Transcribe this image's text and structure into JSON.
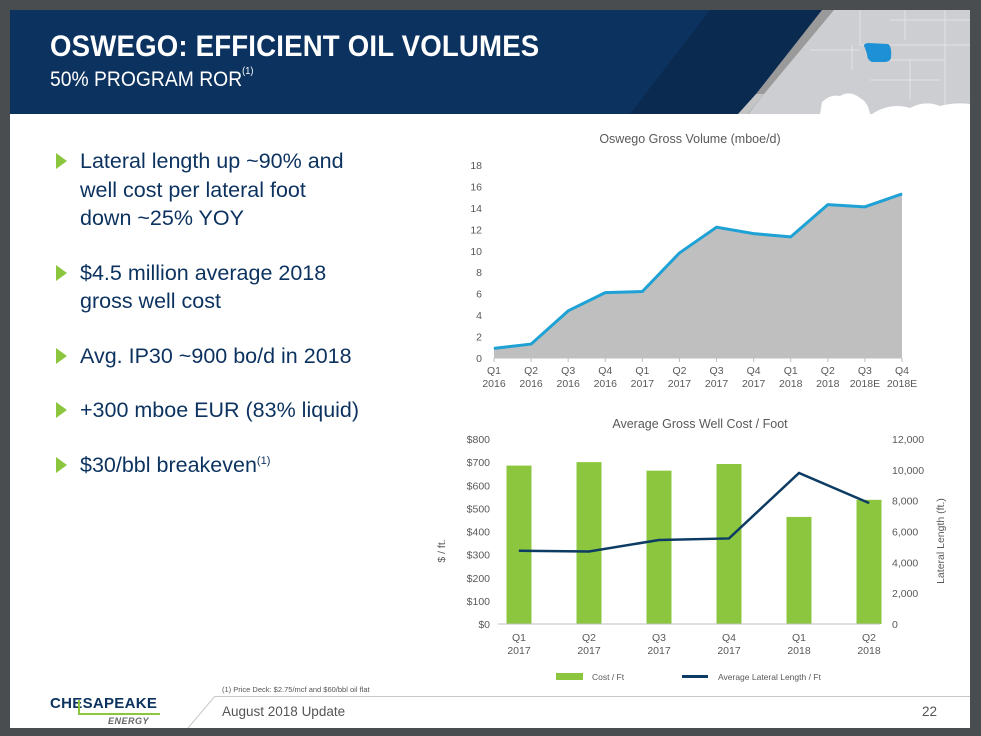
{
  "header": {
    "title": "OSWEGO: EFFICIENT OIL VOLUMES",
    "subtitle": "50% PROGRAM ROR",
    "subtitle_footnote": "(1)"
  },
  "bullets": [
    {
      "text": "Lateral length up ~90% and well cost per lateral foot down ~25% YOY",
      "lines": [
        "Lateral length up ~90% and",
        "well cost per lateral foot",
        "down ~25% YOY"
      ]
    },
    {
      "text": "$4.5 million average 2018 gross well cost",
      "lines": [
        "$4.5 million average 2018",
        "gross well cost"
      ]
    },
    {
      "text": "Avg. IP30 ~900 bo/d in 2018",
      "lines": [
        "Avg. IP30 ~900 bo/d in 2018"
      ]
    },
    {
      "text": "+300 mboe EUR (83% liquid)",
      "lines": [
        "+300 mboe EUR (83% liquid)"
      ]
    },
    {
      "text": "$30/bbl breakeven",
      "lines": [
        "$30/bbl breakeven"
      ],
      "footnote": "(1)"
    }
  ],
  "colors": {
    "navy": "#0c325f",
    "green": "#8cc63f",
    "area_line": "#1ea1d4",
    "area_fill": "#bfbfbf",
    "lateral_line": "#0c3b63",
    "map_highlight": "#1e90d6"
  },
  "chart_data": [
    {
      "type": "area",
      "title": "Oswego Gross Volume (mboe/d)",
      "categories": [
        "Q1 2016",
        "Q2 2016",
        "Q3 2016",
        "Q4 2016",
        "Q1 2017",
        "Q2 2017",
        "Q3 2017",
        "Q4 2017",
        "Q1 2018",
        "Q2 2018",
        "Q3 2018E",
        "Q4 2018E"
      ],
      "category_lines": [
        [
          "Q1",
          "2016"
        ],
        [
          "Q2",
          "2016"
        ],
        [
          "Q3",
          "2016"
        ],
        [
          "Q4",
          "2016"
        ],
        [
          "Q1",
          "2017"
        ],
        [
          "Q2",
          "2017"
        ],
        [
          "Q3",
          "2017"
        ],
        [
          "Q4",
          "2017"
        ],
        [
          "Q1",
          "2018"
        ],
        [
          "Q2",
          "2018"
        ],
        [
          "Q3",
          "2018E"
        ],
        [
          "Q4",
          "2018E"
        ]
      ],
      "values": [
        0.9,
        1.3,
        4.4,
        6.1,
        6.2,
        9.8,
        12.2,
        11.6,
        11.3,
        14.3,
        14.1,
        15.3
      ],
      "ylim": [
        0,
        18
      ],
      "yticks": [
        0,
        2,
        4,
        6,
        8,
        10,
        12,
        14,
        16,
        18
      ],
      "xlabel": "",
      "ylabel": "",
      "grid": false
    },
    {
      "type": "bar",
      "title": "Average Gross Well Cost / Foot",
      "categories": [
        "Q1 2017",
        "Q2 2017",
        "Q3 2017",
        "Q4 2017",
        "Q1 2018",
        "Q2 2018"
      ],
      "category_lines": [
        [
          "Q1",
          "2017"
        ],
        [
          "Q2",
          "2017"
        ],
        [
          "Q3",
          "2017"
        ],
        [
          "Q4",
          "2017"
        ],
        [
          "Q1",
          "2018"
        ],
        [
          "Q2",
          "2018"
        ]
      ],
      "series": [
        {
          "name": "Cost / Ft",
          "type": "bar",
          "axis": "left",
          "values": [
            685,
            700,
            663,
            692,
            463,
            537
          ]
        },
        {
          "name": "Average Lateral Length / Ft",
          "type": "line",
          "axis": "right",
          "values": [
            4750,
            4700,
            5450,
            5550,
            9800,
            7850
          ]
        }
      ],
      "ylabel": "$ / ft.",
      "ylabel_right": "Lateral Length (ft.)",
      "ylim": [
        0,
        800
      ],
      "ylim_right": [
        0,
        12000
      ],
      "yticks": [
        "$0",
        "$100",
        "$200",
        "$300",
        "$400",
        "$500",
        "$600",
        "$700",
        "$800"
      ],
      "yticks_right": [
        "0",
        "2,000",
        "4,000",
        "6,000",
        "8,000",
        "10,000",
        "12,000"
      ],
      "legend": "bottom",
      "grid": false
    }
  ],
  "footer": {
    "footnote": "(1)  Price Deck: $2.75/mcf and $60/bbl oil flat",
    "update_label": "August 2018 Update",
    "page_number": "22",
    "logo_name": "CHESAPEAKE",
    "logo_sub": "ENERGY"
  }
}
